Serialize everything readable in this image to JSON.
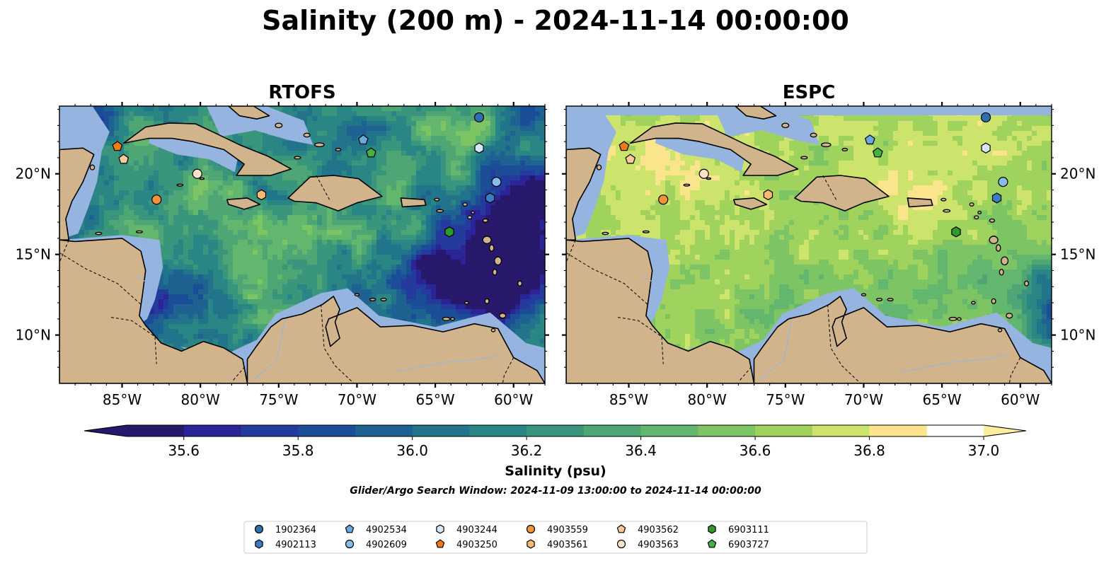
{
  "chart_data": {
    "type": "heatmap",
    "title": "Salinity (200 m) - 2024-11-14 00:00:00",
    "panels": [
      {
        "title": "RTOFS",
        "ylabels_side": "left",
        "field_style": "eddy"
      },
      {
        "title": "ESPC",
        "ylabels_side": "right",
        "field_style": "smooth"
      }
    ],
    "xlim": [
      -89,
      -58
    ],
    "ylim": [
      7,
      24.2
    ],
    "x_ticks": [
      {
        "value": -85,
        "label": "85°W"
      },
      {
        "value": -80,
        "label": "80°W"
      },
      {
        "value": -75,
        "label": "75°W"
      },
      {
        "value": -70,
        "label": "70°W"
      },
      {
        "value": -65,
        "label": "65°W"
      },
      {
        "value": -60,
        "label": "60°W"
      }
    ],
    "y_ticks": [
      {
        "value": 10,
        "label": "10°N"
      },
      {
        "value": 15,
        "label": "15°N"
      },
      {
        "value": 20,
        "label": "20°N"
      }
    ],
    "colorbar": {
      "label": "Salinity (psu)",
      "vmin": 35.5,
      "vmax": 37.0,
      "step": 0.1,
      "extend": "both",
      "ticks": [
        {
          "value": 35.6,
          "label": "35.6"
        },
        {
          "value": 35.8,
          "label": "35.8"
        },
        {
          "value": 36.0,
          "label": "36.0"
        },
        {
          "value": 36.2,
          "label": "36.2"
        },
        {
          "value": 36.4,
          "label": "36.4"
        },
        {
          "value": 36.6,
          "label": "36.6"
        },
        {
          "value": 36.8,
          "label": "36.8"
        },
        {
          "value": 37.0,
          "label": "37.0"
        }
      ],
      "colors": [
        "#28186b",
        "#2a2498",
        "#243b9d",
        "#1b4e96",
        "#1d6290",
        "#22748a",
        "#2a8585",
        "#3a957d",
        "#4ea675",
        "#62b66d",
        "#7cc464",
        "#9fd35e",
        "#cce36c",
        "#fbe58c"
      ],
      "under_color": "#28186b",
      "over_color": "#fdec9f"
    },
    "land_color": "#d2b48c",
    "shelf_color": "#96b4e0",
    "window_text": "Glider/Argo Search Window: 2024-11-09 13:00:00 to 2024-11-14 00:00:00",
    "floats": [
      {
        "id": "1902364",
        "marker": "circle",
        "color": "#2f6fb1",
        "lon": -62.2,
        "lat": 23.5
      },
      {
        "id": "4902113",
        "marker": "hexagon",
        "color": "#3a7dc0",
        "lon": -61.5,
        "lat": 18.5
      },
      {
        "id": "4902534",
        "marker": "pentagon",
        "color": "#6aa8e0",
        "lon": -69.6,
        "lat": 22.1
      },
      {
        "id": "4902609",
        "marker": "circle",
        "color": "#88bce8",
        "lon": -61.1,
        "lat": 19.5
      },
      {
        "id": "4903244",
        "marker": "hexagon",
        "color": "#d3e8f8",
        "lon": -62.2,
        "lat": 21.6
      },
      {
        "id": "4903250",
        "marker": "pentagon",
        "color": "#f27a12",
        "lon": -85.3,
        "lat": 21.7
      },
      {
        "id": "4903559",
        "marker": "circle",
        "color": "#f4923a",
        "lon": -82.8,
        "lat": 18.4
      },
      {
        "id": "4903561",
        "marker": "hexagon",
        "color": "#f9b873",
        "lon": -76.1,
        "lat": 18.7
      },
      {
        "id": "4903562",
        "marker": "pentagon",
        "color": "#f9c99a",
        "lon": -84.9,
        "lat": 20.9
      },
      {
        "id": "4903563",
        "marker": "circle",
        "color": "#fde3c7",
        "lon": -80.2,
        "lat": 20.0
      },
      {
        "id": "6903111",
        "marker": "hexagon",
        "color": "#2e9a2e",
        "lon": -64.1,
        "lat": 16.4
      },
      {
        "id": "6903727",
        "marker": "pentagon",
        "color": "#46b046",
        "lon": -69.1,
        "lat": 21.3
      }
    ]
  }
}
